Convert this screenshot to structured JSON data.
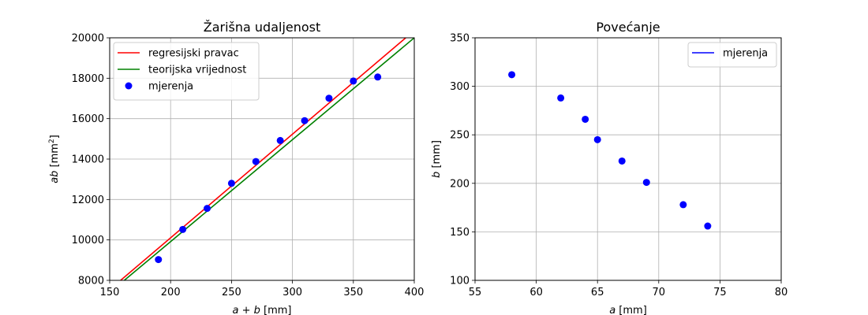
{
  "chart_data": [
    {
      "type": "scatter",
      "title": "Žarišna udaljenost",
      "xlabel_var": "a + b",
      "xlabel_unit": "[mm]",
      "ylabel_var": "ab",
      "ylabel_unit": "[mm",
      "ylabel_sup": "2",
      "ylabel_unit_close": "]",
      "xlim": [
        150,
        400
      ],
      "ylim": [
        8000,
        20000
      ],
      "xticks": [
        150,
        200,
        250,
        300,
        350,
        400
      ],
      "yticks": [
        8000,
        10000,
        12000,
        14000,
        16000,
        18000,
        20000
      ],
      "grid": true,
      "legend_position": "upper-left",
      "series": [
        {
          "name": "regresijski pravac",
          "kind": "line",
          "color": "#ff0000",
          "x": [
            157,
            393
          ],
          "y": [
            7900,
            20000
          ]
        },
        {
          "name": "teorijska vrijednost",
          "kind": "line",
          "color": "#008000",
          "x": [
            160,
            400
          ],
          "y": [
            7900,
            20000
          ]
        },
        {
          "name": "mjerenja",
          "kind": "scatter",
          "color": "#0000ff",
          "x": [
            190,
            210,
            230,
            250,
            270,
            290,
            310,
            330,
            350,
            370
          ],
          "y": [
            9030,
            10520,
            11560,
            12800,
            13880,
            14920,
            15900,
            17010,
            17860,
            18060
          ]
        }
      ]
    },
    {
      "type": "scatter",
      "title": "Povećanje",
      "xlabel_var": "a",
      "xlabel_unit": "[mm]",
      "ylabel_var": "b",
      "ylabel_unit": "[mm]",
      "ylabel_sup": "",
      "ylabel_unit_close": "",
      "xlim": [
        55,
        80
      ],
      "ylim": [
        100,
        350
      ],
      "xticks": [
        55,
        60,
        65,
        70,
        75,
        80
      ],
      "yticks": [
        100,
        150,
        200,
        250,
        300,
        350
      ],
      "grid": true,
      "legend_position": "upper-right",
      "series": [
        {
          "name": "mjerenja",
          "kind": "scatter",
          "legend_marker": "line",
          "color": "#0000ff",
          "x": [
            58,
            62,
            64,
            65,
            67,
            69,
            72,
            74
          ],
          "y": [
            312,
            288,
            266,
            245,
            223,
            201,
            178,
            156
          ]
        }
      ]
    }
  ]
}
